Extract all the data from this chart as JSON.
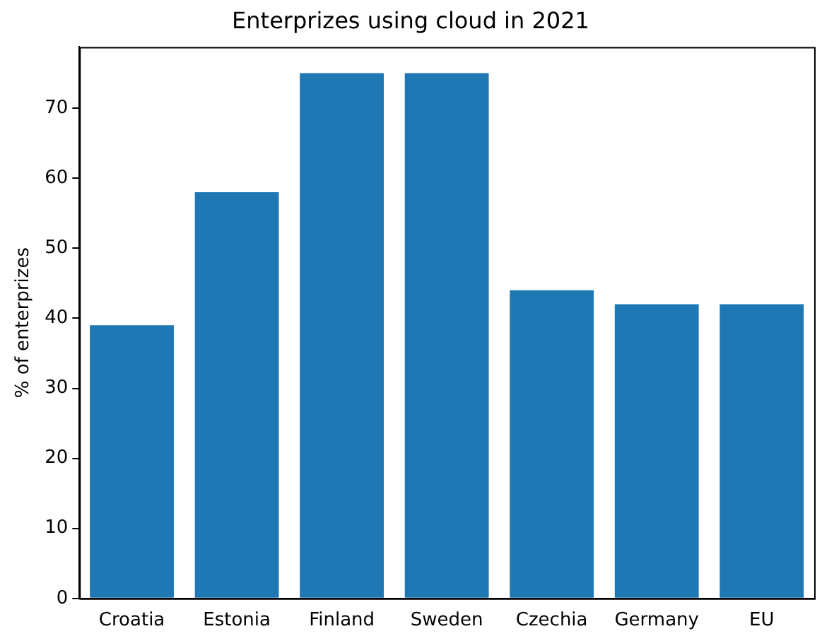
{
  "chart_data": {
    "type": "bar",
    "title": "Enterprizes using cloud in 2021",
    "ylabel": "% of enterprizes",
    "categories": [
      "Croatia",
      "Estonia",
      "Finland",
      "Sweden",
      "Czechia",
      "Germany",
      "EU"
    ],
    "values": [
      39,
      58,
      75,
      75,
      44,
      42,
      42
    ],
    "color": "#1f77b4",
    "ylim": [
      0,
      78.75
    ],
    "yticks": [
      0,
      10,
      20,
      30,
      40,
      50,
      60,
      70
    ],
    "grid": false,
    "legend": false
  }
}
